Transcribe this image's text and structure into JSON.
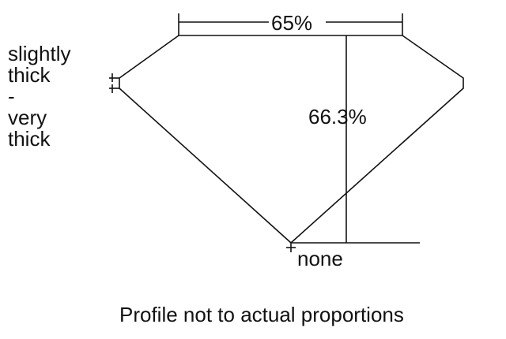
{
  "diagram": {
    "table_percent": "65%",
    "depth_percent": "66.3%",
    "culet_label": "none",
    "girdle_label_lines": [
      "slightly",
      "thick",
      "-",
      "very",
      "thick"
    ],
    "caption": "Profile not to actual proportions"
  },
  "colors": {
    "line": "#111111",
    "background": "#ffffff"
  }
}
